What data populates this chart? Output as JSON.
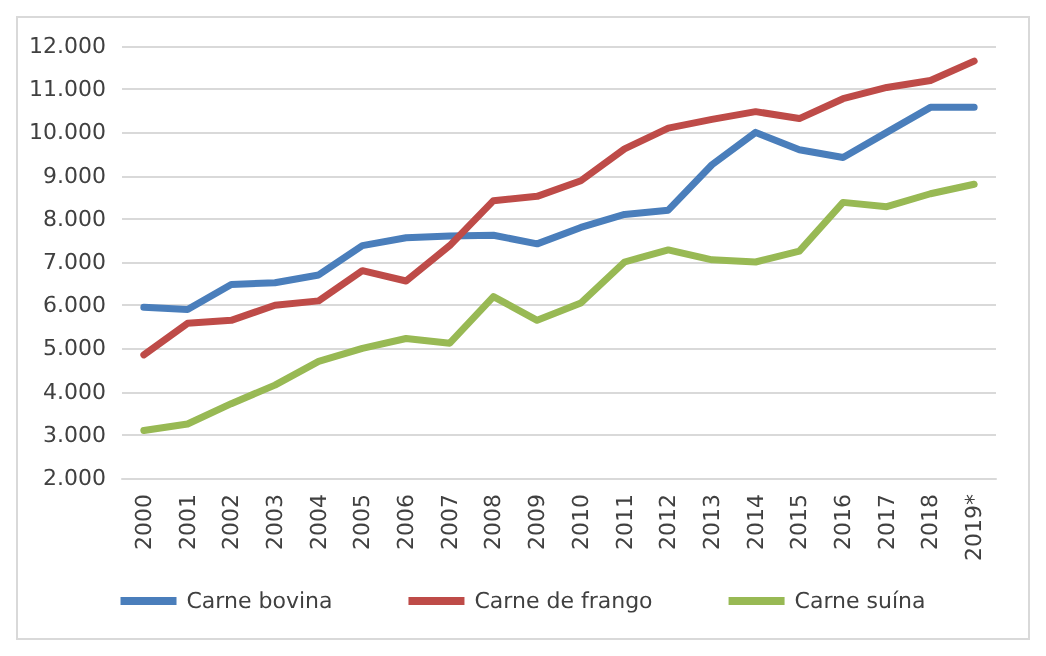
{
  "chart_data": {
    "type": "line",
    "categories": [
      "2000",
      "2001",
      "2002",
      "2003",
      "2004",
      "2005",
      "2006",
      "2007",
      "2008",
      "2009",
      "2010",
      "2011",
      "2012",
      "2013",
      "2014",
      "2015",
      "2016",
      "2017",
      "2018",
      "2019*"
    ],
    "series": [
      {
        "name": "Carne bovina",
        "color": "#4a7ebb",
        "values": [
          5950,
          5900,
          6480,
          6520,
          6700,
          7380,
          7560,
          7600,
          7620,
          7420,
          7800,
          8100,
          8200,
          9250,
          10000,
          9600,
          9420,
          10000,
          10580,
          10580
        ]
      },
      {
        "name": "Carne de frango",
        "color": "#be4b48",
        "values": [
          4850,
          5580,
          5650,
          6000,
          6100,
          6800,
          6560,
          7380,
          8420,
          8520,
          8880,
          9620,
          10100,
          10300,
          10480,
          10320,
          10780,
          11040,
          11200,
          11650
        ]
      },
      {
        "name": "Carne suína",
        "color": "#98b954",
        "values": [
          3100,
          3250,
          3720,
          4150,
          4700,
          5000,
          5230,
          5120,
          6200,
          5650,
          6050,
          7000,
          7280,
          7050,
          7000,
          7250,
          8380,
          8280,
          8580,
          8800
        ]
      }
    ],
    "ylim": [
      2000,
      12000
    ],
    "yticks": [
      {
        "value": 2000,
        "label": "2.000"
      },
      {
        "value": 3000,
        "label": "3.000"
      },
      {
        "value": 4000,
        "label": "4.000"
      },
      {
        "value": 5000,
        "label": "5.000"
      },
      {
        "value": 6000,
        "label": "6.000"
      },
      {
        "value": 7000,
        "label": "7.000"
      },
      {
        "value": 8000,
        "label": "8.000"
      },
      {
        "value": 9000,
        "label": "9.000"
      },
      {
        "value": 10000,
        "label": "10.000"
      },
      {
        "value": 11000,
        "label": "11.000"
      },
      {
        "value": 12000,
        "label": "12.000"
      }
    ],
    "grid": "y",
    "legend": "bottom",
    "marker": "none",
    "line_style": "solid"
  }
}
